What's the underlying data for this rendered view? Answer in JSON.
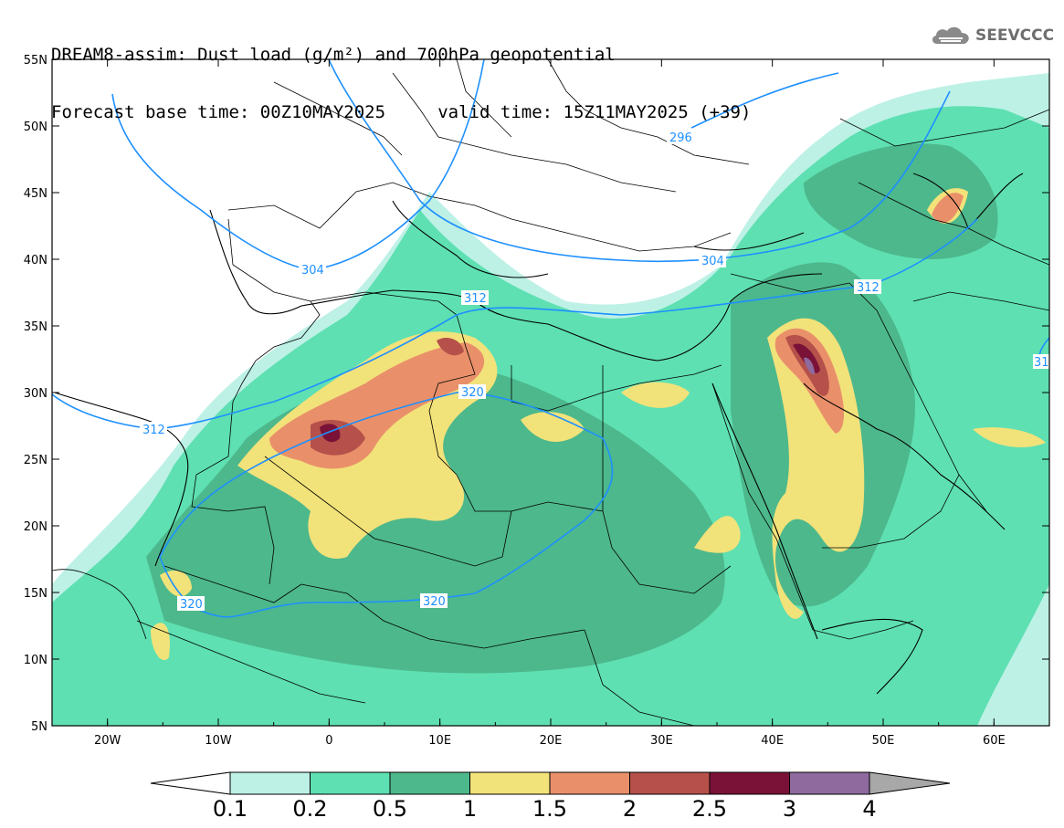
{
  "header": {
    "line1": "DREAM8-assim: Dust load (g/m²) and 700hPa geopotential",
    "line2": "Forecast base time: 00Z10MAY2025     valid time: 15Z11MAY2025 (+39)"
  },
  "logo": {
    "text": "SEEVCCC",
    "icon": "cloud-icon"
  },
  "map": {
    "lon_range": [
      -25,
      65
    ],
    "lat_range": [
      5,
      55
    ],
    "lat_labels": [
      "55N",
      "50N",
      "45N",
      "40N",
      "35N",
      "30N",
      "25N",
      "20N",
      "15N",
      "10N",
      "5N"
    ],
    "lon_labels": [
      "20W",
      "10W",
      "0",
      "10E",
      "20E",
      "30E",
      "40E",
      "50E",
      "60E"
    ],
    "contour_labels": [
      "296",
      "304",
      "304",
      "312",
      "312",
      "312",
      "320",
      "320",
      "320",
      "31"
    ]
  },
  "colorbar": {
    "labels": [
      "0.1",
      "0.2",
      "0.5",
      "1",
      "1.5",
      "2",
      "2.5",
      "3",
      "4"
    ],
    "colors": [
      "#bdf1e6",
      "#5ee0b2",
      "#4db88c",
      "#f2e27a",
      "#e9906a",
      "#b5514a",
      "#7a1238",
      "#8e6a9e",
      "#a8a8a8"
    ]
  },
  "colors": {
    "contour": "#1e90ff",
    "border": "#000000"
  }
}
